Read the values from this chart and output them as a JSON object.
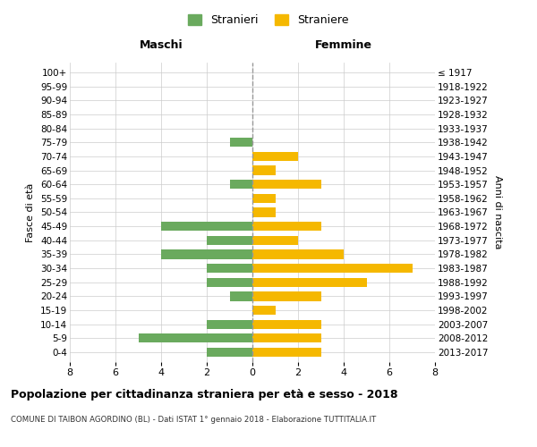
{
  "age_groups": [
    "0-4",
    "5-9",
    "10-14",
    "15-19",
    "20-24",
    "25-29",
    "30-34",
    "35-39",
    "40-44",
    "45-49",
    "50-54",
    "55-59",
    "60-64",
    "65-69",
    "70-74",
    "75-79",
    "80-84",
    "85-89",
    "90-94",
    "95-99",
    "100+"
  ],
  "birth_years": [
    "2013-2017",
    "2008-2012",
    "2003-2007",
    "1998-2002",
    "1993-1997",
    "1988-1992",
    "1983-1987",
    "1978-1982",
    "1973-1977",
    "1968-1972",
    "1963-1967",
    "1958-1962",
    "1953-1957",
    "1948-1952",
    "1943-1947",
    "1938-1942",
    "1933-1937",
    "1928-1932",
    "1923-1927",
    "1918-1922",
    "≤ 1917"
  ],
  "males": [
    2,
    5,
    2,
    0,
    1,
    2,
    2,
    4,
    2,
    4,
    0,
    0,
    1,
    0,
    0,
    1,
    0,
    0,
    0,
    0,
    0
  ],
  "females": [
    3,
    3,
    3,
    1,
    3,
    5,
    7,
    4,
    2,
    3,
    1,
    1,
    3,
    1,
    2,
    0,
    0,
    0,
    0,
    0,
    0
  ],
  "male_color": "#6aaa5e",
  "female_color": "#f5b800",
  "grid_color": "#cccccc",
  "center_line_color": "#999999",
  "bg_color": "#ffffff",
  "title": "Popolazione per cittadinanza straniera per età e sesso - 2018",
  "subtitle": "COMUNE DI TAIBON AGORDINO (BL) - Dati ISTAT 1° gennaio 2018 - Elaborazione TUTTITALIA.IT",
  "xlabel_left": "Maschi",
  "xlabel_right": "Femmine",
  "ylabel_left": "Fasce di età",
  "ylabel_right": "Anni di nascita",
  "legend_male": "Stranieri",
  "legend_female": "Straniere",
  "xlim": 8
}
